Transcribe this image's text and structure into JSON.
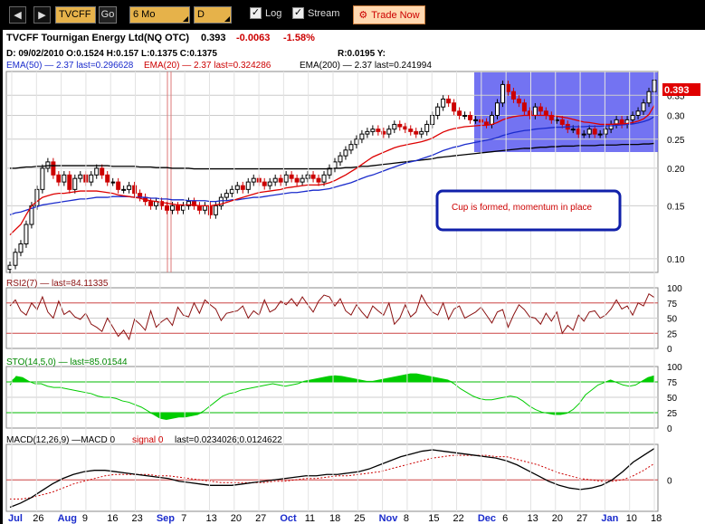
{
  "toolbar": {
    "back_icon": "left-arrow-icon",
    "forward_icon": "right-arrow-icon",
    "symbol": "TVCFF",
    "go_label": "Go",
    "period": "6 Mo",
    "interval": "D",
    "log_label": "Log",
    "log_checked": true,
    "stream_label": "Stream",
    "stream_checked": true,
    "trade_label": "Trade Now"
  },
  "header": {
    "title": "TVCFF Tournigan Energy Ltd(NQ OTC)",
    "price": "0.393",
    "change": "-0.0063",
    "change_pct": "-1.58%",
    "ohlc": "D: 09/02/2010 O:0.1524 H:0.157 L:0.1375 C:0.1375",
    "range": "R:0.0195 Y:",
    "ema50": "EMA(50) — 2.37 last=0.296628",
    "ema20": "EMA(20) — 2.37 last=0.324286",
    "ema200": "EMA(200) — 2.37 last=0.241994",
    "last_price_tag": "0.393"
  },
  "annotation": "Cup is formed, momentum in place",
  "colors": {
    "up": "#000000",
    "down": "#cc0000",
    "ema20": "#dd0000",
    "ema50": "#1a2bcc",
    "ema200": "#000000",
    "rsi": "#8a1010",
    "sto": "#00cc00",
    "highlight": "#4444ee"
  },
  "panels": {
    "rsi_label": "RSI2(7) — last=84.11335",
    "sto_label": "STO(14,5,0) — last=85.01544",
    "macd_label": "MACD(12,26,9) —MACD 0",
    "macd_signal_label": "signal 0",
    "macd_last": "last=0.0234026;0.0124622"
  },
  "chart_data": [
    {
      "type": "candlestick",
      "scale": "log",
      "yticks": [
        "0.393",
        "0.35",
        "0.30",
        "0.25",
        "0.20",
        "0.15",
        "0.10"
      ],
      "ylim": [
        0.09,
        0.42
      ],
      "close": [
        0.095,
        0.105,
        0.112,
        0.13,
        0.15,
        0.17,
        0.2,
        0.21,
        0.19,
        0.18,
        0.19,
        0.17,
        0.185,
        0.19,
        0.18,
        0.19,
        0.2,
        0.19,
        0.18,
        0.18,
        0.17,
        0.17,
        0.175,
        0.165,
        0.16,
        0.155,
        0.15,
        0.155,
        0.15,
        0.145,
        0.15,
        0.145,
        0.15,
        0.155,
        0.15,
        0.145,
        0.15,
        0.14,
        0.15,
        0.16,
        0.165,
        0.17,
        0.175,
        0.17,
        0.18,
        0.185,
        0.18,
        0.175,
        0.18,
        0.185,
        0.18,
        0.19,
        0.185,
        0.18,
        0.185,
        0.19,
        0.185,
        0.18,
        0.19,
        0.2,
        0.21,
        0.22,
        0.23,
        0.24,
        0.25,
        0.26,
        0.265,
        0.27,
        0.265,
        0.26,
        0.27,
        0.28,
        0.275,
        0.27,
        0.265,
        0.26,
        0.265,
        0.28,
        0.3,
        0.32,
        0.34,
        0.33,
        0.31,
        0.3,
        0.3,
        0.29,
        0.29,
        0.285,
        0.28,
        0.3,
        0.33,
        0.38,
        0.36,
        0.34,
        0.33,
        0.31,
        0.3,
        0.32,
        0.31,
        0.3,
        0.29,
        0.29,
        0.28,
        0.27,
        0.27,
        0.26,
        0.26,
        0.27,
        0.26,
        0.26,
        0.27,
        0.28,
        0.29,
        0.28,
        0.29,
        0.3,
        0.31,
        0.33,
        0.36,
        0.393
      ],
      "ema20": [
        0.12,
        0.125,
        0.13,
        0.14,
        0.15,
        0.155,
        0.16,
        0.162,
        0.164,
        0.165,
        0.165,
        0.166,
        0.167,
        0.168,
        0.168,
        0.168,
        0.168,
        0.167,
        0.166,
        0.165,
        0.163,
        0.162,
        0.161,
        0.16,
        0.159,
        0.157,
        0.156,
        0.155,
        0.154,
        0.153,
        0.152,
        0.151,
        0.151,
        0.151,
        0.151,
        0.15,
        0.15,
        0.15,
        0.151,
        0.152,
        0.154,
        0.156,
        0.158,
        0.16,
        0.162,
        0.164,
        0.166,
        0.167,
        0.168,
        0.169,
        0.17,
        0.172,
        0.173,
        0.174,
        0.175,
        0.176,
        0.176,
        0.176,
        0.177,
        0.179,
        0.182,
        0.186,
        0.19,
        0.195,
        0.2,
        0.206,
        0.212,
        0.218,
        0.222,
        0.226,
        0.23,
        0.234,
        0.237,
        0.239,
        0.241,
        0.243,
        0.245,
        0.248,
        0.252,
        0.258,
        0.264,
        0.268,
        0.271,
        0.273,
        0.275,
        0.276,
        0.277,
        0.278,
        0.278,
        0.28,
        0.284,
        0.29,
        0.294,
        0.297,
        0.299,
        0.3,
        0.3,
        0.3,
        0.3,
        0.3,
        0.299,
        0.298,
        0.296,
        0.294,
        0.291,
        0.288,
        0.285,
        0.284,
        0.282,
        0.28,
        0.28,
        0.28,
        0.281,
        0.281,
        0.282,
        0.284,
        0.287,
        0.292,
        0.302,
        0.324
      ],
      "ema50": [
        0.14,
        0.142,
        0.143,
        0.145,
        0.147,
        0.149,
        0.151,
        0.152,
        0.153,
        0.154,
        0.155,
        0.156,
        0.157,
        0.158,
        0.158,
        0.159,
        0.16,
        0.16,
        0.16,
        0.161,
        0.161,
        0.161,
        0.161,
        0.16,
        0.16,
        0.16,
        0.159,
        0.159,
        0.158,
        0.158,
        0.157,
        0.157,
        0.157,
        0.156,
        0.156,
        0.156,
        0.156,
        0.155,
        0.155,
        0.156,
        0.156,
        0.157,
        0.157,
        0.158,
        0.159,
        0.16,
        0.16,
        0.161,
        0.162,
        0.163,
        0.164,
        0.165,
        0.166,
        0.166,
        0.167,
        0.168,
        0.169,
        0.169,
        0.17,
        0.171,
        0.173,
        0.175,
        0.177,
        0.179,
        0.182,
        0.185,
        0.188,
        0.19,
        0.193,
        0.196,
        0.199,
        0.202,
        0.205,
        0.208,
        0.21,
        0.212,
        0.215,
        0.218,
        0.221,
        0.225,
        0.229,
        0.232,
        0.235,
        0.237,
        0.24,
        0.242,
        0.244,
        0.246,
        0.248,
        0.25,
        0.253,
        0.257,
        0.26,
        0.263,
        0.265,
        0.267,
        0.268,
        0.27,
        0.271,
        0.272,
        0.273,
        0.274,
        0.274,
        0.275,
        0.275,
        0.275,
        0.275,
        0.276,
        0.276,
        0.276,
        0.277,
        0.277,
        0.278,
        0.279,
        0.28,
        0.281,
        0.283,
        0.286,
        0.29,
        0.297
      ],
      "ema200": [
        0.2,
        0.2,
        0.201,
        0.202,
        0.202,
        0.203,
        0.203,
        0.204,
        0.204,
        0.204,
        0.204,
        0.204,
        0.204,
        0.204,
        0.204,
        0.204,
        0.204,
        0.204,
        0.204,
        0.203,
        0.203,
        0.203,
        0.203,
        0.203,
        0.202,
        0.202,
        0.202,
        0.201,
        0.201,
        0.201,
        0.2,
        0.2,
        0.2,
        0.2,
        0.199,
        0.199,
        0.199,
        0.199,
        0.199,
        0.199,
        0.199,
        0.199,
        0.199,
        0.199,
        0.199,
        0.199,
        0.199,
        0.199,
        0.199,
        0.199,
        0.199,
        0.199,
        0.199,
        0.199,
        0.199,
        0.199,
        0.199,
        0.199,
        0.199,
        0.199,
        0.2,
        0.2,
        0.201,
        0.201,
        0.202,
        0.203,
        0.203,
        0.204,
        0.205,
        0.206,
        0.207,
        0.208,
        0.209,
        0.21,
        0.211,
        0.212,
        0.213,
        0.214,
        0.215,
        0.217,
        0.218,
        0.219,
        0.22,
        0.221,
        0.222,
        0.223,
        0.224,
        0.225,
        0.226,
        0.227,
        0.228,
        0.229,
        0.23,
        0.231,
        0.232,
        0.233,
        0.233,
        0.234,
        0.235,
        0.235,
        0.236,
        0.236,
        0.237,
        0.237,
        0.237,
        0.238,
        0.238,
        0.238,
        0.238,
        0.239,
        0.239,
        0.239,
        0.239,
        0.24,
        0.24,
        0.24,
        0.24,
        0.241,
        0.241,
        0.242
      ]
    },
    {
      "type": "line",
      "name": "RSI",
      "yticks": [
        "100",
        "75",
        "50",
        "25",
        "0"
      ],
      "ylim": [
        0,
        100
      ],
      "values": [
        70,
        80,
        62,
        55,
        75,
        64,
        85,
        60,
        50,
        78,
        56,
        62,
        52,
        48,
        58,
        40,
        35,
        28,
        50,
        35,
        20,
        30,
        15,
        48,
        40,
        30,
        62,
        35,
        44,
        50,
        38,
        68,
        55,
        52,
        75,
        58,
        80,
        72,
        65,
        46,
        58,
        60,
        62,
        70,
        50,
        62,
        55,
        80,
        60,
        65,
        78,
        72,
        82,
        70,
        85,
        72,
        60,
        78,
        88,
        85,
        70,
        82,
        62,
        55,
        72,
        60,
        50,
        70,
        62,
        55,
        75,
        40,
        50,
        72,
        52,
        60,
        88,
        72,
        60,
        55,
        75,
        48,
        65,
        70,
        50,
        55,
        60,
        68,
        55,
        42,
        60,
        64,
        35,
        55,
        72,
        64,
        52,
        50,
        40,
        58,
        45,
        60,
        25,
        38,
        30,
        55,
        45,
        60,
        62,
        50,
        55,
        65,
        80,
        65,
        70,
        55,
        75,
        70,
        90,
        84
      ]
    },
    {
      "type": "area",
      "name": "STO",
      "yticks": [
        "100",
        "75",
        "50",
        "25",
        "0"
      ],
      "ylim": [
        0,
        100
      ],
      "values": [
        70,
        84,
        82,
        76,
        72,
        72,
        68,
        66,
        66,
        64,
        62,
        60,
        58,
        56,
        52,
        50,
        50,
        48,
        44,
        42,
        38,
        34,
        28,
        22,
        16,
        14,
        16,
        18,
        18,
        20,
        22,
        28,
        36,
        44,
        52,
        56,
        58,
        62,
        64,
        66,
        68,
        70,
        72,
        70,
        68,
        70,
        72,
        76,
        78,
        80,
        82,
        84,
        85,
        84,
        82,
        80,
        78,
        76,
        76,
        78,
        80,
        82,
        84,
        86,
        88,
        88,
        86,
        84,
        82,
        80,
        78,
        72,
        64,
        58,
        52,
        48,
        46,
        46,
        48,
        50,
        52,
        50,
        44,
        36,
        30,
        26,
        24,
        22,
        22,
        24,
        30,
        40,
        54,
        62,
        70,
        74,
        78,
        74,
        70,
        68,
        70,
        76,
        82,
        85
      ]
    },
    {
      "type": "line",
      "name": "MACD",
      "yticks": [
        "0"
      ],
      "values": [
        -0.02,
        -0.017,
        -0.013,
        -0.008,
        -0.003,
        0.001,
        0.004,
        0.006,
        0.007,
        0.007,
        0.006,
        0.005,
        0.004,
        0.003,
        0.002,
        0.001,
        -0.001,
        -0.002,
        -0.003,
        -0.004,
        -0.004,
        -0.004,
        -0.003,
        -0.002,
        -0.001,
        0.0,
        0.001,
        0.002,
        0.003,
        0.003,
        0.004,
        0.004,
        0.005,
        0.006,
        0.008,
        0.011,
        0.014,
        0.017,
        0.019,
        0.021,
        0.022,
        0.021,
        0.02,
        0.019,
        0.018,
        0.017,
        0.016,
        0.014,
        0.011,
        0.007,
        0.003,
        -0.001,
        -0.004,
        -0.006,
        -0.007,
        -0.006,
        -0.004,
        0.0,
        0.006,
        0.013,
        0.018,
        0.023
      ],
      "signal": [
        -0.014,
        -0.014,
        -0.013,
        -0.011,
        -0.009,
        -0.006,
        -0.003,
        -0.001,
        0.001,
        0.003,
        0.004,
        0.004,
        0.004,
        0.004,
        0.003,
        0.003,
        0.002,
        0.001,
        0.0,
        -0.001,
        -0.002,
        -0.002,
        -0.002,
        -0.002,
        -0.002,
        -0.001,
        -0.001,
        0.0,
        0.001,
        0.001,
        0.002,
        0.003,
        0.003,
        0.004,
        0.005,
        0.006,
        0.008,
        0.01,
        0.012,
        0.014,
        0.016,
        0.017,
        0.018,
        0.018,
        0.018,
        0.018,
        0.017,
        0.017,
        0.015,
        0.013,
        0.011,
        0.008,
        0.005,
        0.003,
        0.001,
        0.0,
        -0.001,
        -0.001,
        0.0,
        0.003,
        0.007,
        0.012
      ]
    }
  ],
  "xaxis": [
    "Jul",
    "26",
    "Aug",
    "9",
    "16",
    "23",
    "Sep",
    "7",
    "13",
    "20",
    "27",
    "Oct",
    "11",
    "18",
    "25",
    "Nov",
    "8",
    "15",
    "22",
    "Dec",
    "6",
    "13",
    "20",
    "27",
    "Jan",
    "10",
    "18"
  ]
}
